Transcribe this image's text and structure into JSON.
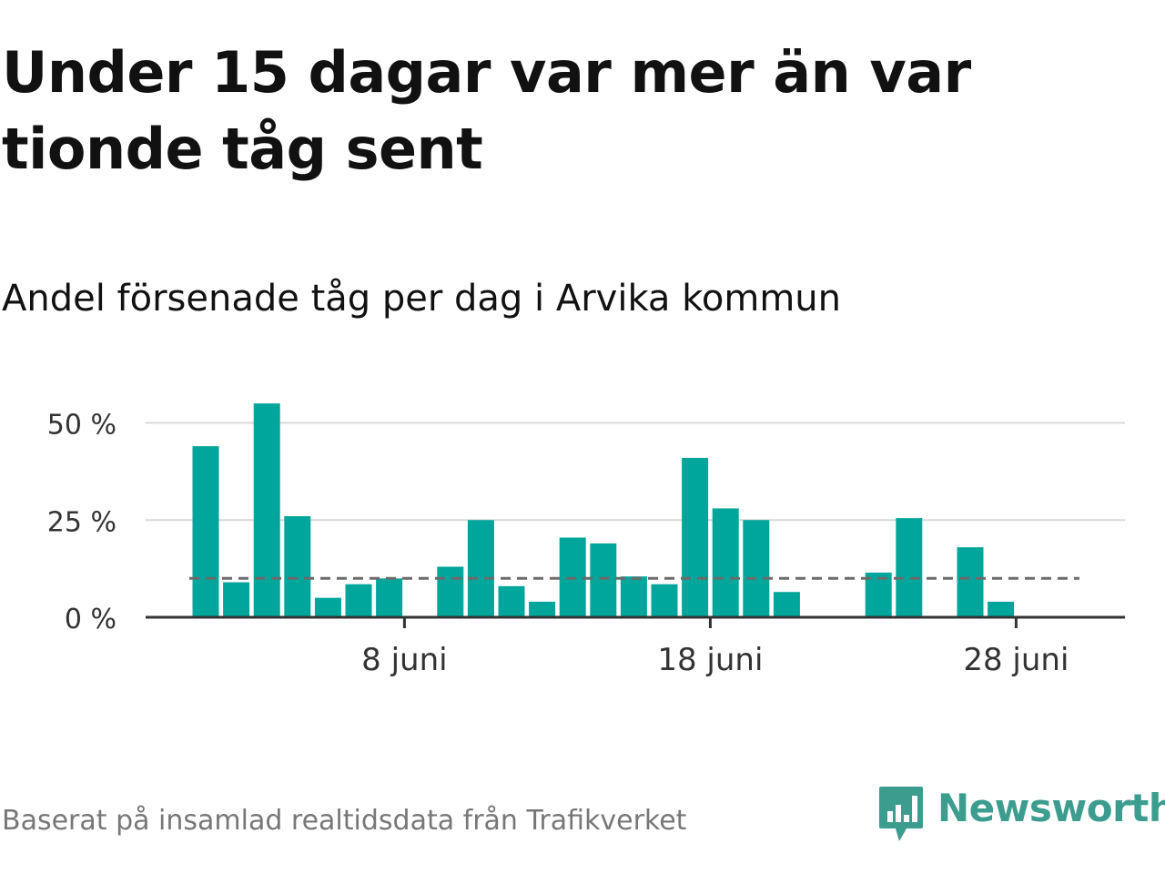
{
  "headline": "Under 15 dagar var mer än var tionde tåg sent",
  "subtitle": "Andel försenade tåg per dag i Arvika kommun",
  "source": "Baserat på insamlad realtidsdata från Trafikverket",
  "brand": {
    "name": "Newsworthy",
    "icon": "newsworthy-logo-icon",
    "color": "#3c9d8f"
  },
  "colors": {
    "bar": "#00a59b",
    "gridline": "#d9d9d9",
    "reference": "#6b6b6b",
    "axis": "#333333"
  },
  "chart_data": {
    "type": "bar",
    "x": [
      "1 juni",
      "2 juni",
      "3 juni",
      "4 juni",
      "5 juni",
      "6 juni",
      "7 juni",
      "8 juni",
      "9 juni",
      "10 juni",
      "11 juni",
      "12 juni",
      "13 juni",
      "14 juni",
      "15 juni",
      "16 juni",
      "17 juni",
      "18 juni",
      "19 juni",
      "20 juni",
      "21 juni",
      "22 juni",
      "23 juni",
      "24 juni",
      "25 juni",
      "26 juni",
      "27 juni",
      "28 juni",
      "29 juni"
    ],
    "values": [
      44,
      9,
      55,
      26,
      5,
      8.5,
      10,
      0,
      13,
      25,
      8,
      4,
      20.5,
      19,
      10.5,
      8.5,
      41,
      28,
      25,
      6.5,
      0,
      0,
      11.5,
      25.5,
      0,
      18,
      4,
      0,
      0
    ],
    "ylim": [
      0,
      55
    ],
    "yticks": [
      0,
      25,
      50
    ],
    "ytick_labels": [
      "0 %",
      "25 %",
      "50 %"
    ],
    "xtick_labels": [
      {
        "x": "8 juni",
        "label": "8 juni"
      },
      {
        "x": "18 juni",
        "label": "18 juni"
      },
      {
        "x": "28 juni",
        "label": "28 juni"
      }
    ],
    "reference_line": {
      "y": 10,
      "style": "dashed"
    },
    "grid": true,
    "xlabel": "",
    "ylabel": ""
  }
}
